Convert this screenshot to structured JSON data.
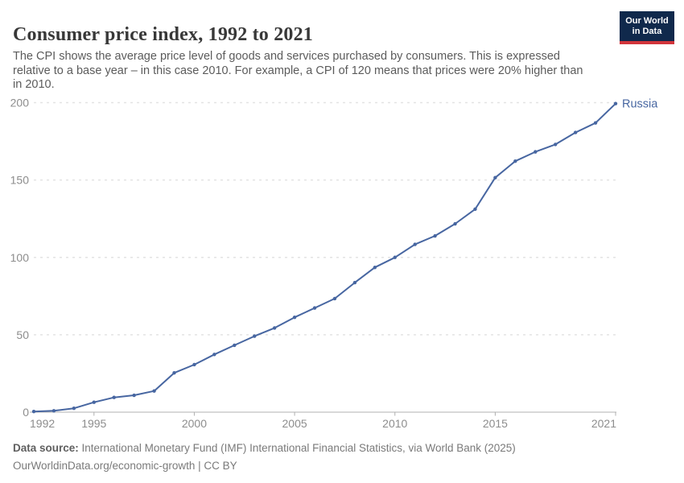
{
  "header": {
    "title": "Consumer price index, 1992 to 2021",
    "subtitle_lines": [
      "The CPI shows the average price level of goods and services purchased by consumers. This is expressed",
      "relative to a base year – in this case 2010. For example, a CPI of 120 means that prices were 20% higher than",
      "in 2010."
    ],
    "logo": {
      "line1": "Our World",
      "line2": "in Data"
    }
  },
  "chart_data": {
    "type": "line",
    "title": "Consumer price index, 1992 to 2021",
    "xlabel": "",
    "ylabel": "",
    "xlim": [
      1992,
      2021
    ],
    "ylim": [
      0,
      200
    ],
    "x_ticks": [
      1992,
      1995,
      2000,
      2005,
      2010,
      2015,
      2021
    ],
    "y_ticks": [
      0,
      50,
      100,
      150,
      200
    ],
    "grid": "horizontal-dashed",
    "legend_position": "end-of-line-label",
    "series": [
      {
        "name": "Russia",
        "color": "#4766a1",
        "x": [
          1992,
          1993,
          1994,
          1995,
          1996,
          1997,
          1998,
          1999,
          2000,
          2001,
          2002,
          2003,
          2004,
          2005,
          2006,
          2007,
          2008,
          2009,
          2010,
          2011,
          2012,
          2013,
          2014,
          2015,
          2016,
          2017,
          2018,
          2019,
          2020,
          2021
        ],
        "values": [
          0.4,
          0.9,
          2.5,
          6.4,
          9.5,
          10.9,
          13.7,
          25.4,
          30.7,
          37.3,
          43.2,
          49.1,
          54.4,
          61.3,
          67.3,
          73.4,
          83.7,
          93.5,
          100,
          108.4,
          113.9,
          121.7,
          131.2,
          151.5,
          162.2,
          168.2,
          173,
          180.7,
          186.9,
          199.4
        ]
      }
    ]
  },
  "footer": {
    "data_source_label": "Data source:",
    "data_source_text": " International Monetary Fund (IMF) International Financial Statistics, via World Bank (2025)",
    "attribution": "OurWorldinData.org/economic-growth | CC BY"
  },
  "colors": {
    "line": "#4766a1",
    "grid": "#e3e3e3",
    "axis": "#b0b0b0",
    "tick_label": "#8d8d8d",
    "logo_bg": "#10294c",
    "logo_red": "#d1353b"
  }
}
